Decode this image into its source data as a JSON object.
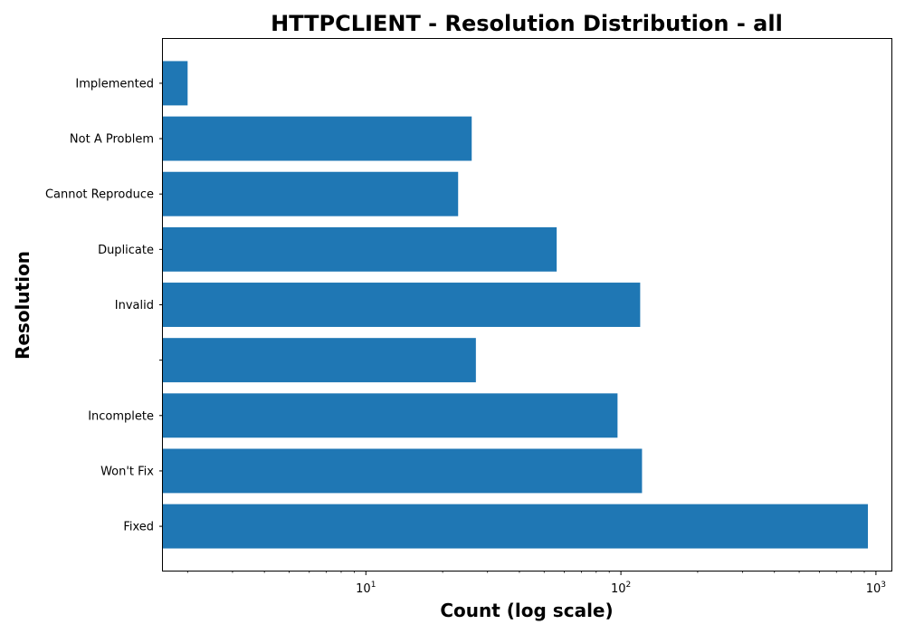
{
  "chart_data": {
    "type": "bar",
    "orientation": "horizontal",
    "title": "HTTPCLIENT - Resolution Distribution - all",
    "xlabel": "Count (log scale)",
    "ylabel": "Resolution",
    "x_scale": "log",
    "xlim": [
      1.6,
      1150
    ],
    "x_ticks": [
      {
        "base": "10",
        "exp": "1",
        "value": 10
      },
      {
        "base": "10",
        "exp": "2",
        "value": 100
      },
      {
        "base": "10",
        "exp": "3",
        "value": 1000
      }
    ],
    "categories": [
      "Implemented",
      "Not A Problem",
      "Cannot Reproduce",
      "Duplicate",
      "Invalid",
      "",
      "Incomplete",
      "Won't Fix",
      "Fixed"
    ],
    "values": [
      2,
      26,
      23,
      56,
      119,
      27,
      97,
      121,
      930
    ],
    "bar_color": "#1f77b4",
    "grid": false,
    "legend": "none"
  }
}
